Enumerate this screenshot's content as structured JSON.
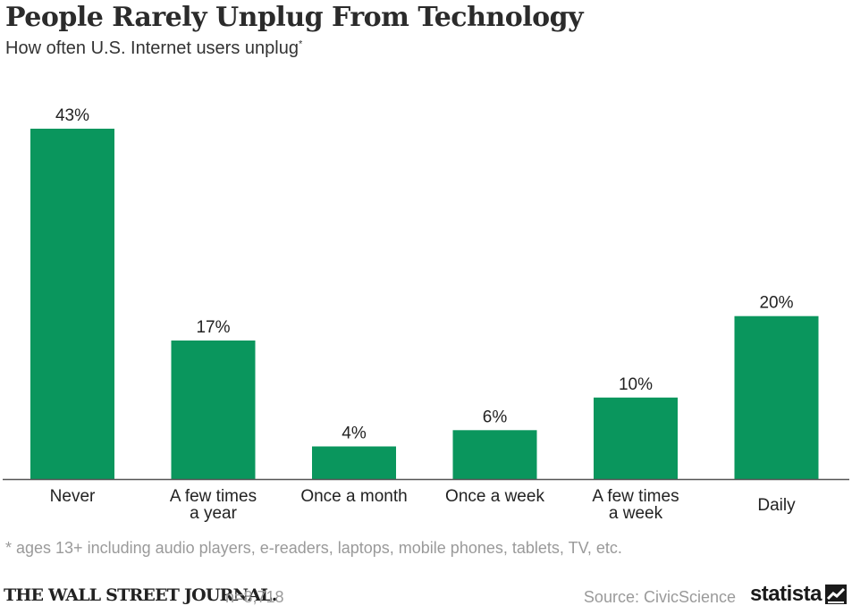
{
  "header": {
    "title": "People Rarely Unplug From Technology",
    "subtitle": "How often U.S. Internet users unplug",
    "subtitle_marker": "*"
  },
  "footer": {
    "footnote": "* ages 13+ including audio players, e-readers, laptops, mobile phones, tablets, TV, etc.",
    "publisher": "THE WALL STREET JOURNAL.",
    "sample_size": "n=8,718",
    "source": "Source: CivicScience",
    "brand": "statista"
  },
  "colors": {
    "bar": "#0a965d",
    "axis": "#555555",
    "text": "#222222",
    "muted": "#9a9a9a"
  },
  "chart_data": {
    "type": "bar",
    "title": "People Rarely Unplug From Technology",
    "subtitle": "How often U.S. Internet users unplug*",
    "categories": [
      [
        "Never"
      ],
      [
        "A few times",
        "a year"
      ],
      [
        "Once a month"
      ],
      [
        "Once a week"
      ],
      [
        "A few times",
        "a week"
      ],
      [
        "Daily"
      ]
    ],
    "values": [
      43,
      17,
      4,
      6,
      10,
      20
    ],
    "value_labels": [
      "43%",
      "17%",
      "4%",
      "6%",
      "10%",
      "20%"
    ],
    "xlabel": "",
    "ylabel": "",
    "ylim": [
      0,
      43
    ],
    "grid": false,
    "legend": "none"
  }
}
